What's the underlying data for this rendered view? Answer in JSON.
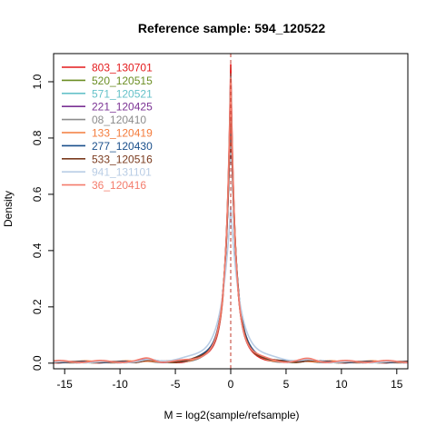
{
  "chart_data": {
    "type": "line",
    "title": "Reference sample: 594_120522",
    "xlabel": "M = log2(sample/refsample)",
    "ylabel": "Density",
    "xlim": [
      -16,
      16
    ],
    "ylim": [
      -0.02,
      1.1
    ],
    "xticks": [
      -15,
      -10,
      -5,
      0,
      5,
      10,
      15
    ],
    "yticks": [
      0.0,
      0.2,
      0.4,
      0.6,
      0.8,
      1.0
    ],
    "xtick_labels": [
      "-15",
      "-10",
      "-5",
      "0",
      "5",
      "10",
      "15"
    ],
    "ytick_labels": [
      "0.0",
      "0.2",
      "0.4",
      "0.6",
      "0.8",
      "1.0"
    ],
    "grid": false,
    "legend_position": "top-left",
    "vline_x": 0,
    "series": [
      {
        "name": "803_130701",
        "color": "#e41a1c",
        "peak": 1.0,
        "width": 0.55,
        "tail_amp": 0.003
      },
      {
        "name": "520_120515",
        "color": "#6b8e23",
        "peak": 0.93,
        "width": 0.6,
        "tail_amp": 0.004
      },
      {
        "name": "571_120521",
        "color": "#66c2c9",
        "peak": 0.88,
        "width": 0.62,
        "tail_amp": 0.004
      },
      {
        "name": "221_120425",
        "color": "#7b3294",
        "peak": 0.91,
        "width": 0.6,
        "tail_amp": 0.004
      },
      {
        "name": "08_120410",
        "color": "#8c8c8c",
        "peak": 0.97,
        "width": 0.57,
        "tail_amp": 0.003
      },
      {
        "name": "133_120419",
        "color": "#f47c3c",
        "peak": 0.9,
        "width": 0.6,
        "tail_amp": 0.005
      },
      {
        "name": "277_120430",
        "color": "#1a4f8b",
        "peak": 0.86,
        "width": 0.65,
        "tail_amp": 0.004
      },
      {
        "name": "533_120516",
        "color": "#7a3b1f",
        "peak": 0.89,
        "width": 0.62,
        "tail_amp": 0.004
      },
      {
        "name": "941_131101",
        "color": "#b9cde5",
        "peak": 0.52,
        "width": 1.05,
        "tail_amp": 0.004
      },
      {
        "name": "36_120416",
        "color": "#f47c6c",
        "peak": 0.95,
        "width": 0.58,
        "tail_amp": 0.006
      }
    ]
  }
}
